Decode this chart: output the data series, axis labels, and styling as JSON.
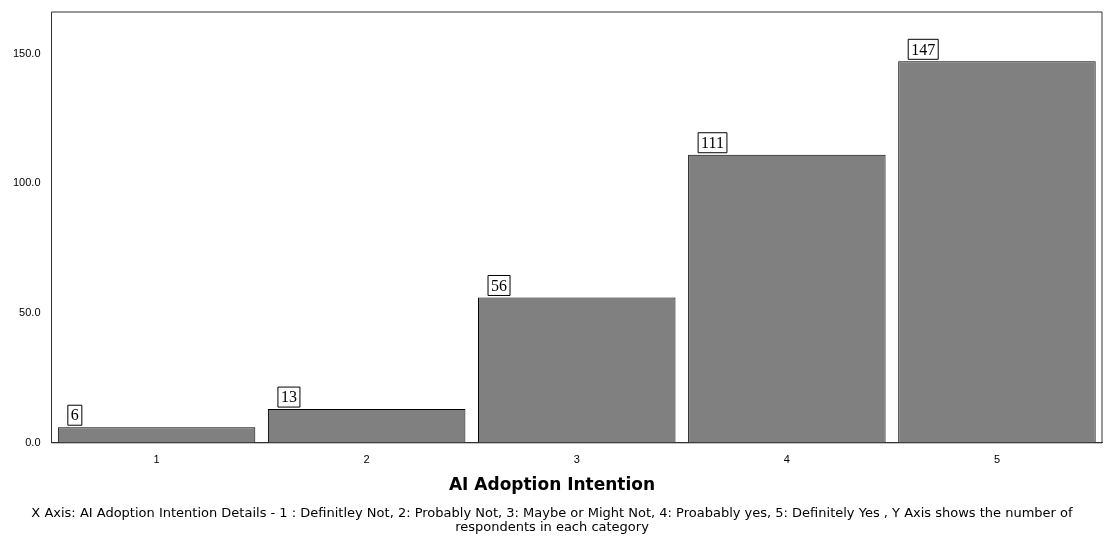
{
  "chart_data": {
    "type": "bar",
    "xlabel": "AI Adoption Intention",
    "categories": [
      "1",
      "2",
      "3",
      "4",
      "5"
    ],
    "values": [
      6,
      13,
      56,
      111,
      147
    ],
    "color": "#808080",
    "ylim": [
      0,
      166
    ],
    "yticks": [
      {
        "value": 0,
        "label": "0.0"
      },
      {
        "value": 50,
        "label": "50.0"
      },
      {
        "value": 100,
        "label": "100.0"
      },
      {
        "value": 150,
        "label": "150.0"
      }
    ],
    "grid": false,
    "legend": false,
    "data_labels": true,
    "annotations": [
      "X Axis: AI Adoption Intention Details - 1 : Definitley Not, 2: Probably Not, 3: Maybe or Might Not, 4: Proabably yes, 5: Definitely Yes , Y Axis shows the number of respondents in each category"
    ]
  }
}
